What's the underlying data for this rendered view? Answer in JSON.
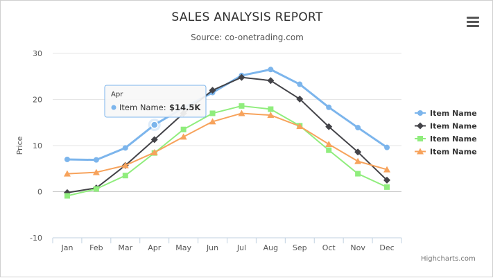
{
  "title": "SALES ANALYSIS REPORT",
  "subtitle": "Source: co-onetrading.com",
  "credits": "Highcharts.com",
  "menu_icon": "hamburger-menu-icon",
  "chart_data": {
    "type": "line",
    "title": "SALES ANALYSIS REPORT",
    "subtitle": "Source: co-onetrading.com",
    "xlabel": "",
    "ylabel": "Price",
    "ylim": [
      -10,
      30
    ],
    "yticks": [
      -10,
      0,
      10,
      20,
      30
    ],
    "grid": true,
    "legend_position": "right",
    "categories": [
      "Jan",
      "Feb",
      "Mar",
      "Apr",
      "May",
      "Jun",
      "Jul",
      "Aug",
      "Sep",
      "Oct",
      "Nov",
      "Dec"
    ],
    "series": [
      {
        "name": "Item Name",
        "color": "#7cb5ec",
        "marker": "circle",
        "values": [
          7.0,
          6.9,
          9.5,
          14.5,
          18.2,
          21.5,
          25.2,
          26.5,
          23.3,
          18.3,
          13.9,
          9.6
        ]
      },
      {
        "name": "Item Name",
        "color": "#434348",
        "marker": "diamond",
        "values": [
          -0.2,
          0.8,
          5.7,
          11.3,
          17.0,
          22.0,
          24.8,
          24.1,
          20.1,
          14.1,
          8.6,
          2.5
        ]
      },
      {
        "name": "Item Name",
        "color": "#90ed7d",
        "marker": "square",
        "values": [
          -0.9,
          0.6,
          3.5,
          8.4,
          13.5,
          17.0,
          18.6,
          17.9,
          14.3,
          9.0,
          3.9,
          1.0
        ]
      },
      {
        "name": "Item Name",
        "color": "#f7a35c",
        "marker": "triangle",
        "values": [
          3.9,
          4.2,
          5.7,
          8.5,
          11.9,
          15.2,
          17.0,
          16.6,
          14.2,
          10.3,
          6.6,
          4.8
        ]
      }
    ],
    "tooltip": {
      "category": "Apr",
      "series_label": "Item Name:",
      "value_text": "$14.5K",
      "series_index": 0,
      "point_index": 3
    }
  }
}
